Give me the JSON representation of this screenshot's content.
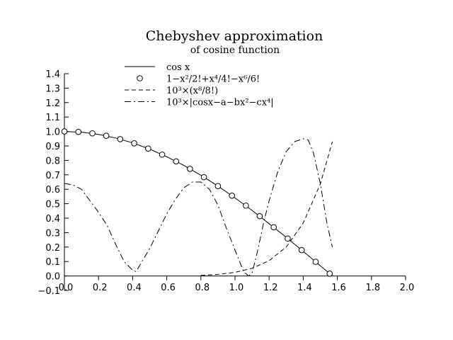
{
  "chart_data": {
    "type": "line",
    "title": "Chebyshev approximation",
    "subtitle": "of cosine function",
    "xlabel": "",
    "ylabel": "",
    "xlim": [
      0.0,
      2.0
    ],
    "ylim": [
      -0.1,
      1.4
    ],
    "x_ticks": [
      "0.0",
      "0.2",
      "0.4",
      "0.6",
      "0.8",
      "1.0",
      "1.2",
      "1.4",
      "1.6",
      "1.8",
      "2.0"
    ],
    "y_ticks": [
      "−0.1",
      "0.0",
      "0.1",
      "0.2",
      "0.3",
      "0.4",
      "0.5",
      "0.6",
      "0.7",
      "0.8",
      "0.9",
      "1.0",
      "1.1",
      "1.2",
      "1.3",
      "1.4"
    ],
    "grid": false,
    "legend_position": "top-right",
    "series": [
      {
        "name": "cos x",
        "style": "solid",
        "x": [
          0.0,
          0.1,
          0.2,
          0.3,
          0.4,
          0.5,
          0.6,
          0.7,
          0.8,
          0.9,
          1.0,
          1.1,
          1.2,
          1.3,
          1.4,
          1.5,
          1.571
        ],
        "y": [
          1.0,
          0.995,
          0.98,
          0.955,
          0.921,
          0.878,
          0.825,
          0.765,
          0.697,
          0.622,
          0.54,
          0.454,
          0.362,
          0.268,
          0.17,
          0.071,
          0.0
        ]
      },
      {
        "name": "1−x²/2!+x⁴/4!−x⁶/6!",
        "style": "circles",
        "x": [
          0.0,
          0.082,
          0.164,
          0.245,
          0.327,
          0.409,
          0.491,
          0.573,
          0.655,
          0.736,
          0.818,
          0.9,
          0.982,
          1.064,
          1.145,
          1.227,
          1.309,
          1.391,
          1.473,
          1.555
        ],
        "y": [
          1.0,
          0.997,
          0.987,
          0.97,
          0.947,
          0.918,
          0.882,
          0.84,
          0.793,
          0.741,
          0.684,
          0.622,
          0.556,
          0.487,
          0.414,
          0.337,
          0.259,
          0.179,
          0.098,
          0.016
        ]
      },
      {
        "name": "10³×(x⁸/8!)",
        "style": "dashed",
        "x": [
          0.8,
          0.9,
          1.0,
          1.1,
          1.2,
          1.3,
          1.4,
          1.5,
          1.571
        ],
        "y": [
          0.004,
          0.011,
          0.025,
          0.053,
          0.106,
          0.2,
          0.366,
          0.636,
          0.93
        ]
      },
      {
        "name": "10³×|cosx−a−bx²−cx⁴|",
        "style": "dashdot",
        "x": [
          0.0,
          0.05,
          0.1,
          0.15,
          0.2,
          0.25,
          0.3,
          0.35,
          0.4,
          0.42,
          0.45,
          0.5,
          0.55,
          0.6,
          0.65,
          0.7,
          0.75,
          0.8,
          0.85,
          0.9,
          0.95,
          1.0,
          1.05,
          1.08,
          1.1,
          1.13,
          1.17,
          1.2,
          1.25,
          1.3,
          1.35,
          1.4,
          1.43,
          1.46,
          1.5,
          1.54,
          1.571
        ],
        "y": [
          0.64,
          0.63,
          0.6,
          0.52,
          0.44,
          0.35,
          0.22,
          0.1,
          0.04,
          0.03,
          0.09,
          0.19,
          0.31,
          0.43,
          0.53,
          0.61,
          0.65,
          0.65,
          0.6,
          0.49,
          0.33,
          0.18,
          0.03,
          0.0,
          0.02,
          0.16,
          0.38,
          0.52,
          0.72,
          0.86,
          0.93,
          0.95,
          0.94,
          0.85,
          0.64,
          0.36,
          0.2
        ]
      }
    ]
  }
}
